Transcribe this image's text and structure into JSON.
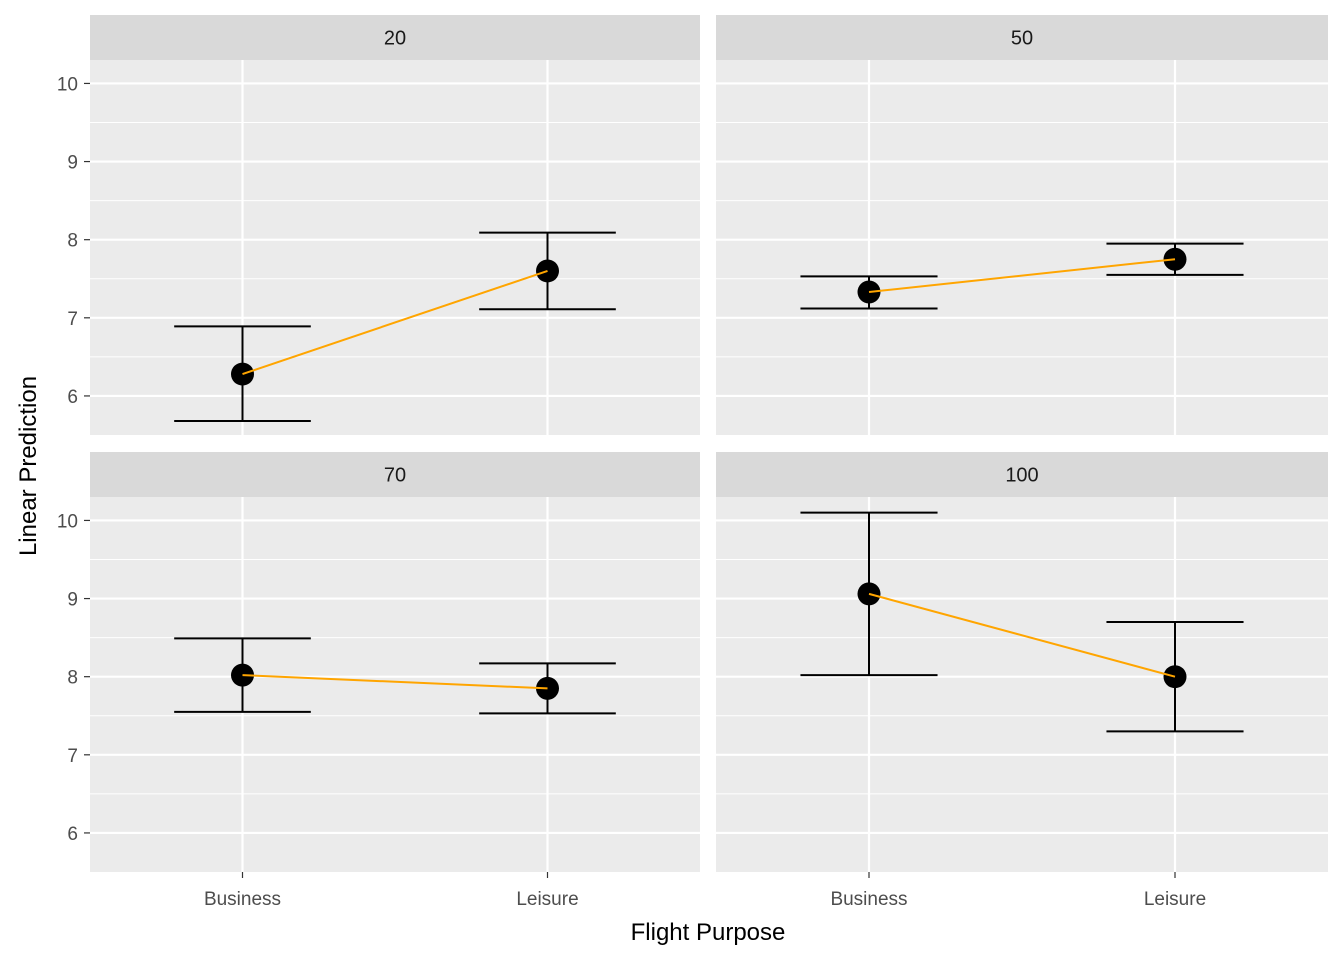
{
  "chart_data": {
    "type": "scatter",
    "layout": "facet_wrap 2x2",
    "xlabel": "Flight Purpose",
    "ylabel": "Linear Prediction",
    "categories": [
      "Business",
      "Leisure"
    ],
    "ylim": [
      5.5,
      10.3
    ],
    "yticks": [
      6,
      7,
      8,
      9,
      10
    ],
    "grid": true,
    "colors": {
      "panel_bg": "#ebebeb",
      "strip_bg": "#d9d9d9",
      "grid": "#ffffff",
      "point": "#000000",
      "errorbar": "#000000",
      "line": "#ffa500"
    },
    "panels": [
      {
        "label": "20",
        "points": [
          {
            "x": "Business",
            "y": 6.28,
            "ymin": 5.68,
            "ymax": 6.89
          },
          {
            "x": "Leisure",
            "y": 7.6,
            "ymin": 7.11,
            "ymax": 8.09
          }
        ]
      },
      {
        "label": "50",
        "points": [
          {
            "x": "Business",
            "y": 7.33,
            "ymin": 7.12,
            "ymax": 7.53
          },
          {
            "x": "Leisure",
            "y": 7.75,
            "ymin": 7.55,
            "ymax": 7.95
          }
        ]
      },
      {
        "label": "70",
        "points": [
          {
            "x": "Business",
            "y": 8.02,
            "ymin": 7.55,
            "ymax": 8.49
          },
          {
            "x": "Leisure",
            "y": 7.85,
            "ymin": 7.53,
            "ymax": 8.17
          }
        ]
      },
      {
        "label": "100",
        "points": [
          {
            "x": "Business",
            "y": 9.06,
            "ymin": 8.02,
            "ymax": 10.1
          },
          {
            "x": "Leisure",
            "y": 8.0,
            "ymin": 7.3,
            "ymax": 8.7
          }
        ]
      }
    ]
  }
}
